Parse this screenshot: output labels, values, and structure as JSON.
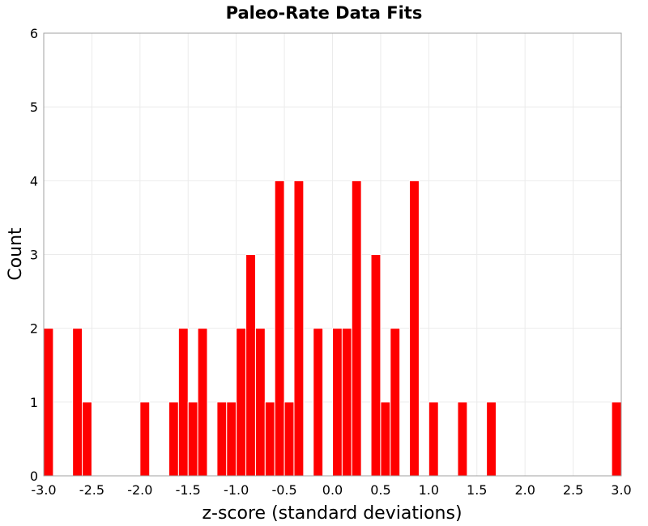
{
  "chart_data": {
    "type": "bar",
    "title": "Paleo-Rate Data Fits",
    "xlabel": "z-score (standard deviations)",
    "ylabel": "Count",
    "xlim": [
      -3.0,
      3.0
    ],
    "ylim": [
      0,
      6
    ],
    "grid": true,
    "bin_width": 0.1,
    "x_ticks": [
      "-3.0",
      "-2.5",
      "-2.0",
      "-1.5",
      "-1.0",
      "-0.5",
      "0.0",
      "0.5",
      "1.0",
      "1.5",
      "2.0",
      "2.5",
      "3.0"
    ],
    "y_ticks": [
      "0",
      "1",
      "2",
      "3",
      "4",
      "5",
      "6"
    ],
    "bins": [
      {
        "x": -2.95,
        "count": 2
      },
      {
        "x": -2.65,
        "count": 2
      },
      {
        "x": -2.55,
        "count": 1
      },
      {
        "x": -1.95,
        "count": 1
      },
      {
        "x": -1.65,
        "count": 1
      },
      {
        "x": -1.55,
        "count": 2
      },
      {
        "x": -1.45,
        "count": 1
      },
      {
        "x": -1.35,
        "count": 2
      },
      {
        "x": -1.15,
        "count": 1
      },
      {
        "x": -1.05,
        "count": 1
      },
      {
        "x": -0.95,
        "count": 2
      },
      {
        "x": -0.85,
        "count": 3
      },
      {
        "x": -0.75,
        "count": 2
      },
      {
        "x": -0.65,
        "count": 1
      },
      {
        "x": -0.55,
        "count": 4
      },
      {
        "x": -0.45,
        "count": 1
      },
      {
        "x": -0.35,
        "count": 4
      },
      {
        "x": -0.15,
        "count": 2
      },
      {
        "x": 0.05,
        "count": 2
      },
      {
        "x": 0.15,
        "count": 2
      },
      {
        "x": 0.25,
        "count": 4
      },
      {
        "x": 0.45,
        "count": 3
      },
      {
        "x": 0.55,
        "count": 1
      },
      {
        "x": 0.65,
        "count": 2
      },
      {
        "x": 0.85,
        "count": 4
      },
      {
        "x": 1.05,
        "count": 1
      },
      {
        "x": 1.35,
        "count": 1
      },
      {
        "x": 1.65,
        "count": 1
      },
      {
        "x": 2.95,
        "count": 1
      }
    ],
    "colors": {
      "bar": "#ff0000",
      "frame": "#a0a0a0",
      "grid": "#ebebeb"
    }
  }
}
